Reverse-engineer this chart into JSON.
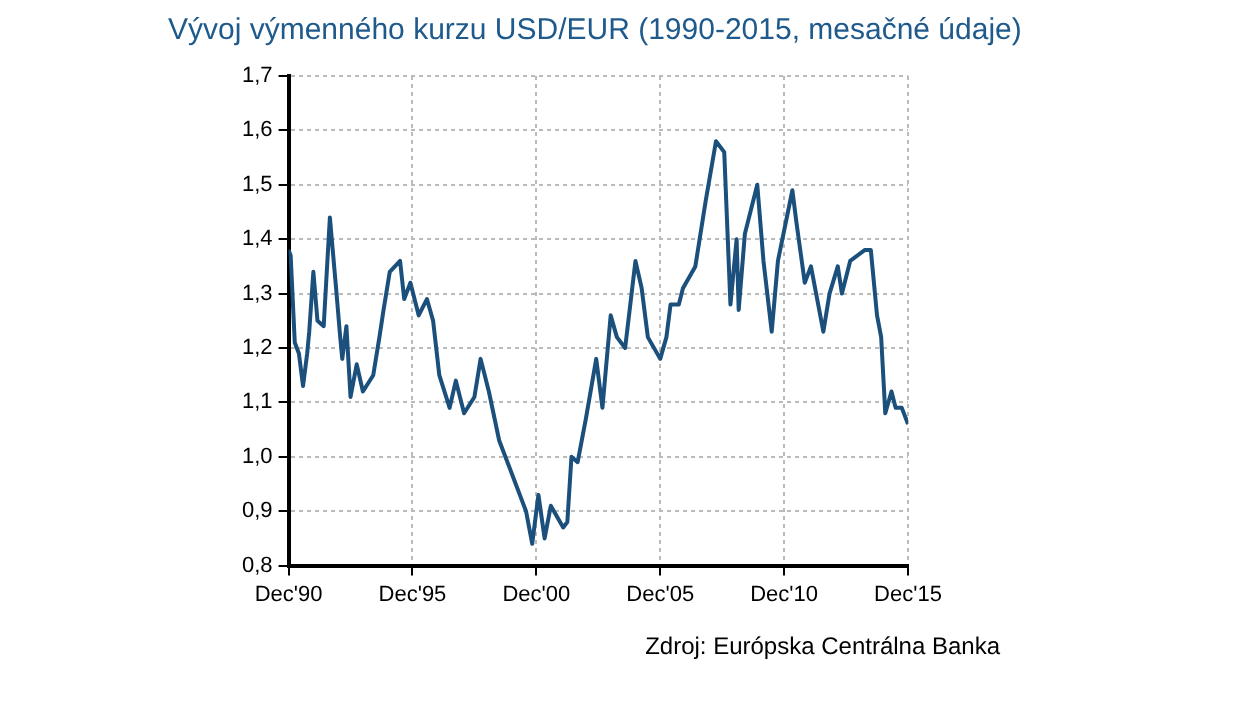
{
  "chart_data": {
    "type": "line",
    "title": "Vývoj výmenného kurzu USD/EUR (1990-2015, mesačné údaje)",
    "annotations": [
      "Zdroj: Európska Centrálna Banka"
    ],
    "x": [
      "1990-12",
      "1991-01",
      "1991-03",
      "1991-05",
      "1991-07",
      "1991-09",
      "1991-10",
      "1991-12",
      "1992-02",
      "1992-05",
      "1992-08",
      "1992-11",
      "1993-01",
      "1993-02",
      "1993-04",
      "1993-06",
      "1993-09",
      "1993-12",
      "1994-05",
      "1994-08",
      "1994-10",
      "1995-01",
      "1995-06",
      "1995-08",
      "1995-11",
      "1996-03",
      "1996-07",
      "1996-10",
      "1997-01",
      "1997-06",
      "1997-09",
      "1998-01",
      "1998-06",
      "1998-09",
      "1999-01",
      "1999-06",
      "2000-01",
      "2000-04",
      "2000-07",
      "2000-10",
      "2001-01",
      "2001-04",
      "2001-07",
      "2002-01",
      "2002-03",
      "2002-05",
      "2002-08",
      "2002-12",
      "2003-05",
      "2003-08",
      "2003-12",
      "2004-03",
      "2004-07",
      "2004-12",
      "2005-03",
      "2005-06",
      "2005-12",
      "2006-03",
      "2006-05",
      "2006-09",
      "2006-11",
      "2007-05",
      "2007-10",
      "2008-03",
      "2008-07",
      "2008-10",
      "2009-01",
      "2009-02",
      "2009-05",
      "2009-11",
      "2010-02",
      "2010-06",
      "2010-09",
      "2011-04",
      "2011-06",
      "2011-10",
      "2012-01",
      "2012-07",
      "2012-10",
      "2013-02",
      "2013-04",
      "2013-08",
      "2014-03",
      "2014-06",
      "2014-09",
      "2014-11",
      "2015-01",
      "2015-04",
      "2015-06",
      "2015-09",
      "2015-12"
    ],
    "series": [
      {
        "color": "#1b4f7c",
        "values": [
          1.38,
          1.37,
          1.21,
          1.19,
          1.13,
          1.19,
          1.23,
          1.34,
          1.25,
          1.24,
          1.44,
          1.31,
          1.22,
          1.18,
          1.24,
          1.11,
          1.17,
          1.12,
          1.15,
          1.22,
          1.27,
          1.34,
          1.36,
          1.29,
          1.32,
          1.26,
          1.29,
          1.25,
          1.15,
          1.09,
          1.14,
          1.08,
          1.11,
          1.18,
          1.12,
          1.03,
          0.96,
          0.93,
          0.9,
          0.84,
          0.93,
          0.85,
          0.91,
          0.87,
          0.88,
          1.0,
          0.99,
          1.07,
          1.18,
          1.09,
          1.26,
          1.22,
          1.2,
          1.36,
          1.31,
          1.22,
          1.18,
          1.22,
          1.28,
          1.28,
          1.31,
          1.35,
          1.47,
          1.58,
          1.56,
          1.28,
          1.4,
          1.27,
          1.41,
          1.5,
          1.36,
          1.23,
          1.36,
          1.49,
          1.43,
          1.32,
          1.35,
          1.23,
          1.3,
          1.35,
          1.3,
          1.36,
          1.38,
          1.38,
          1.26,
          1.22,
          1.08,
          1.12,
          1.09,
          1.09,
          1.06
        ]
      }
    ],
    "xlim": [
      "1990-12",
      "2015-12"
    ],
    "xticks": [
      {
        "value": "1990-12",
        "label": "Dec'90"
      },
      {
        "value": "1995-12",
        "label": "Dec'95"
      },
      {
        "value": "2000-12",
        "label": "Dec'00"
      },
      {
        "value": "2005-12",
        "label": "Dec'05"
      },
      {
        "value": "2010-12",
        "label": "Dec'10"
      },
      {
        "value": "2015-12",
        "label": "Dec'15"
      }
    ],
    "ylim": [
      0.8,
      1.7
    ],
    "yticks": [
      {
        "value": 0.8,
        "label": "0,8"
      },
      {
        "value": 0.9,
        "label": "0,9"
      },
      {
        "value": 1.0,
        "label": "1,0"
      },
      {
        "value": 1.1,
        "label": "1,1"
      },
      {
        "value": 1.2,
        "label": "1,2"
      },
      {
        "value": 1.3,
        "label": "1,3"
      },
      {
        "value": 1.4,
        "label": "1,4"
      },
      {
        "value": 1.5,
        "label": "1,5"
      },
      {
        "value": 1.6,
        "label": "1,6"
      },
      {
        "value": 1.7,
        "label": "1,7"
      }
    ],
    "grid": true,
    "legend": false,
    "marker": "none",
    "line_style": "solid"
  }
}
